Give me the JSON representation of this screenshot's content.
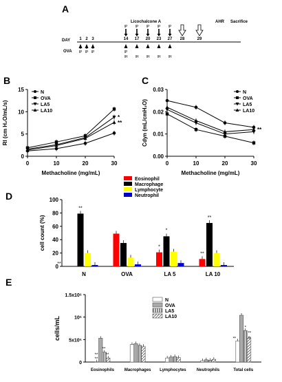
{
  "figure": {
    "panels": [
      "A",
      "B",
      "C",
      "D",
      "E"
    ]
  },
  "colors": {
    "eosinophil": "#ff0000",
    "macrophage": "#000000",
    "lymphocyte": "#ffff00",
    "neutrophil": "#0000cc",
    "axis": "#000000"
  },
  "timeline": {
    "day_label": "DAY",
    "ova_label": "OVA",
    "lico_label": "Licochalcone A",
    "days": [
      "1",
      "2",
      "3",
      "14",
      "17",
      "20",
      "23",
      "27",
      "28",
      "29"
    ],
    "ova_ip": [
      "IP",
      "IP",
      "IP"
    ],
    "lico_ip": [
      "IP",
      "IP",
      "IP",
      "IP",
      "IP"
    ],
    "ova_ip_day14": "IP",
    "ova_ih": [
      "IH",
      "IH",
      "IH",
      "IH",
      "IH"
    ],
    "ahr_label": "AHR",
    "sacrifice_label": "Sacrifice"
  },
  "chart_data": [
    {
      "id": "B",
      "type": "line",
      "ylabel": "Rl (cm H₂O/mL/s)",
      "xlabel": "Methacholine (mg/mL)",
      "x": [
        0,
        10,
        20,
        30
      ],
      "xlim": [
        0,
        30
      ],
      "ylim": [
        0,
        15
      ],
      "yticks": [
        0,
        5,
        10,
        15
      ],
      "series": [
        {
          "name": "N",
          "values": [
            1.2,
            1.7,
            2.9,
            5.2
          ]
        },
        {
          "name": "OVA",
          "values": [
            1.9,
            3.2,
            4.6,
            10.6
          ]
        },
        {
          "name": "LA5",
          "values": [
            1.6,
            2.6,
            4.2,
            8.8
          ]
        },
        {
          "name": "LA10",
          "values": [
            1.4,
            2.4,
            4.0,
            7.6
          ]
        }
      ],
      "annotations": [
        {
          "text": "*",
          "series": "LA5",
          "x": 30
        },
        {
          "text": "**",
          "series": "LA10",
          "x": 30
        }
      ]
    },
    {
      "id": "C",
      "type": "line",
      "ylabel": "Cdyn (mL/cmH₂O)",
      "xlabel": "Methacholine (mg/mL)",
      "x": [
        0,
        10,
        20,
        30
      ],
      "xlim": [
        0,
        30
      ],
      "ylim": [
        0,
        0.03
      ],
      "yticks": [
        0.0,
        0.01,
        0.02,
        0.03
      ],
      "series": [
        {
          "name": "N",
          "values": [
            0.025,
            0.022,
            0.015,
            0.013
          ]
        },
        {
          "name": "OVA",
          "values": [
            0.019,
            0.012,
            0.009,
            0.006
          ]
        },
        {
          "name": "LA5",
          "values": [
            0.021,
            0.015,
            0.01,
            0.011
          ]
        },
        {
          "name": "LA10",
          "values": [
            0.022,
            0.016,
            0.011,
            0.012
          ]
        }
      ],
      "annotations": [
        {
          "text": "**",
          "series": "LA10",
          "x": 30
        }
      ]
    },
    {
      "id": "D",
      "type": "bar",
      "ylabel": "cell count (%)",
      "categories": [
        "N",
        "OVA",
        "LA 5",
        "LA 10"
      ],
      "ylim": [
        0,
        100
      ],
      "yticks": [
        0,
        20,
        40,
        60,
        80,
        100
      ],
      "series": [
        {
          "name": "Eosinophil",
          "values": [
            0,
            49,
            21,
            11
          ]
        },
        {
          "name": "Macrophage",
          "values": [
            79,
            35,
            45,
            65
          ]
        },
        {
          "name": "Lymphocyte",
          "values": [
            20,
            13,
            22,
            20
          ]
        },
        {
          "name": "Neutrophil",
          "values": [
            2,
            3,
            5,
            2
          ]
        }
      ],
      "annotations": [
        "**",
        "**",
        "*",
        "*",
        "**",
        "**"
      ]
    },
    {
      "id": "E",
      "type": "bar",
      "ylabel": "cells/mL",
      "categories": [
        "Eosinophils",
        "Macrophages",
        "Lymphocytes",
        "Neutrophils",
        "Total cells"
      ],
      "ylim": [
        0,
        1500000
      ],
      "yticks": [
        "0",
        "5x10⁵",
        "10⁶",
        "1.5x10⁶"
      ],
      "series": [
        {
          "name": "N",
          "values": [
            5000,
            390000,
            90000,
            30000,
            470000
          ]
        },
        {
          "name": "OVA",
          "values": [
            530000,
            410000,
            110000,
            50000,
            1040000
          ]
        },
        {
          "name": "LA5",
          "values": [
            220000,
            370000,
            120000,
            40000,
            700000
          ]
        },
        {
          "name": "LA10",
          "values": [
            90000,
            350000,
            100000,
            60000,
            530000
          ]
        }
      ],
      "annotations": [
        "**",
        "**",
        "**",
        "**",
        "**",
        "*",
        "**",
        "**"
      ]
    }
  ]
}
